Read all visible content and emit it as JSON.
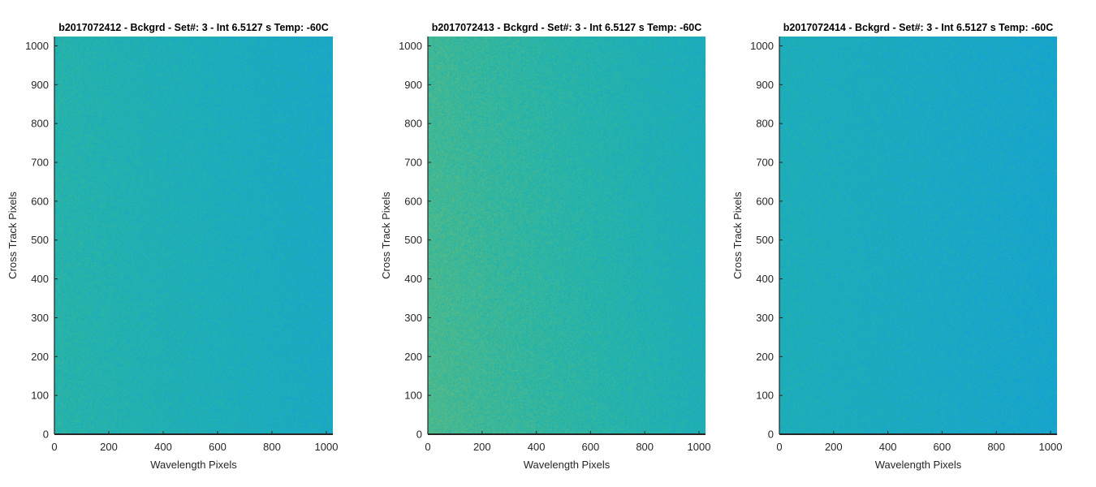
{
  "chart_data": [
    {
      "type": "heatmap",
      "title": "b2017072412 - Bckgrd - Set#: 3 - Int 6.5127 s Temp: -60C",
      "xlabel": "Wavelength Pixels",
      "ylabel": "Cross Track Pixels",
      "xlim": [
        0,
        1024
      ],
      "ylim": [
        0,
        1024
      ],
      "xticks": [
        "0",
        "200",
        "400",
        "600",
        "800",
        "1000"
      ],
      "yticks": [
        "0",
        "100",
        "200",
        "300",
        "400",
        "500",
        "600",
        "700",
        "800",
        "900",
        "1000"
      ],
      "colormap": "parula",
      "value_range": [
        0.38,
        0.52
      ],
      "gradient": {
        "left": 0.49,
        "right": 0.41,
        "low_rows": 0.01
      }
    },
    {
      "type": "heatmap",
      "title": "b2017072413 - Bckgrd - Set#: 3 - Int 6.5127 s Temp: -60C",
      "xlabel": "Wavelength Pixels",
      "ylabel": "Cross Track Pixels",
      "xlim": [
        0,
        1024
      ],
      "ylim": [
        0,
        1024
      ],
      "xticks": [
        "0",
        "200",
        "400",
        "600",
        "800",
        "1000"
      ],
      "yticks": [
        "0",
        "100",
        "200",
        "300",
        "400",
        "500",
        "600",
        "700",
        "800",
        "900",
        "1000"
      ],
      "colormap": "parula",
      "value_range": [
        0.38,
        0.58
      ],
      "gradient": {
        "left": 0.55,
        "right": 0.44,
        "low_rows": 0.02
      }
    },
    {
      "type": "heatmap",
      "title": "b2017072414 - Bckgrd - Set#: 3 - Int 6.5127 s Temp: -60C",
      "xlabel": "Wavelength Pixels",
      "ylabel": "Cross Track Pixels",
      "xlim": [
        0,
        1024
      ],
      "ylim": [
        0,
        1024
      ],
      "xticks": [
        "0",
        "200",
        "400",
        "600",
        "800",
        "1000"
      ],
      "yticks": [
        "0",
        "100",
        "200",
        "300",
        "400",
        "500",
        "600",
        "700",
        "800",
        "900",
        "1000"
      ],
      "colormap": "parula",
      "value_range": [
        0.36,
        0.48
      ],
      "gradient": {
        "left": 0.45,
        "right": 0.39,
        "low_rows": 0.0
      }
    }
  ]
}
